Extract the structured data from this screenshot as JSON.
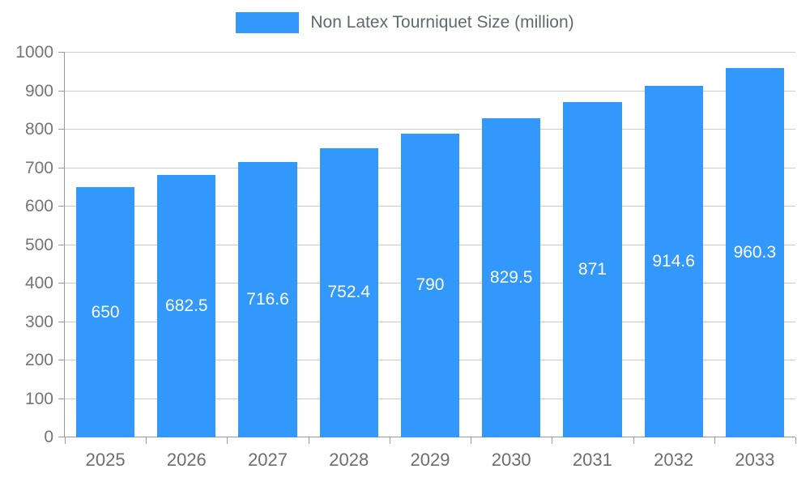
{
  "chart_data": {
    "type": "bar",
    "title": "Non Latex Tourniquet Size (million)",
    "categories": [
      "2025",
      "2026",
      "2027",
      "2028",
      "2029",
      "2030",
      "2031",
      "2032",
      "2033"
    ],
    "values": [
      650,
      682.5,
      716.6,
      752.4,
      790,
      829.5,
      871,
      914.6,
      960.3
    ],
    "value_labels": [
      "650",
      "682.5",
      "716.6",
      "752.4",
      "790",
      "829.5",
      "871",
      "914.6",
      "960.3"
    ],
    "xlabel": "",
    "ylabel": "",
    "ylim": [
      0,
      1000
    ],
    "ytick_step": 100,
    "grid": true,
    "legend_position": "top",
    "bar_color": "#3398FB",
    "value_label_color": "#ffffff",
    "axis_text_color": "#757575"
  }
}
